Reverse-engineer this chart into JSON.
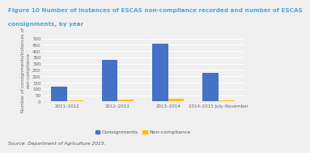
{
  "title_line1": "Figure 10 Number of instances of ESCAS non-compliance recorded and number of ESCAS",
  "title_line2": "consignments, by year",
  "title_fontsize": 5.2,
  "ylabel": "Number of consignments/instances of\nnon-compliance",
  "ylabel_fontsize": 4.0,
  "source": "Source: Department of Agriculture 2015.",
  "source_fontsize": 4.2,
  "categories": [
    "2011–2012",
    "2012–2013",
    "2013–2014",
    "2014–2015 July–November"
  ],
  "consignments": [
    120,
    330,
    460,
    225
  ],
  "non_compliance": [
    8,
    18,
    20,
    8
  ],
  "bar_color_consignments": "#4472C4",
  "bar_color_non_compliance": "#FFC000",
  "ylim": [
    0,
    500
  ],
  "yticks": [
    0,
    50,
    100,
    150,
    200,
    250,
    300,
    350,
    400,
    450,
    500
  ],
  "legend_consignments": "Consignments",
  "legend_non_compliance": "Non-compliance",
  "legend_fontsize": 4.5,
  "tick_fontsize": 4.0,
  "bar_width": 0.32,
  "background_color": "#f0f0f0",
  "plot_bg_color": "#f0f0f0",
  "grid_color": "#ffffff",
  "title_color": "#4da6d4",
  "axis_color": "#aaaaaa"
}
